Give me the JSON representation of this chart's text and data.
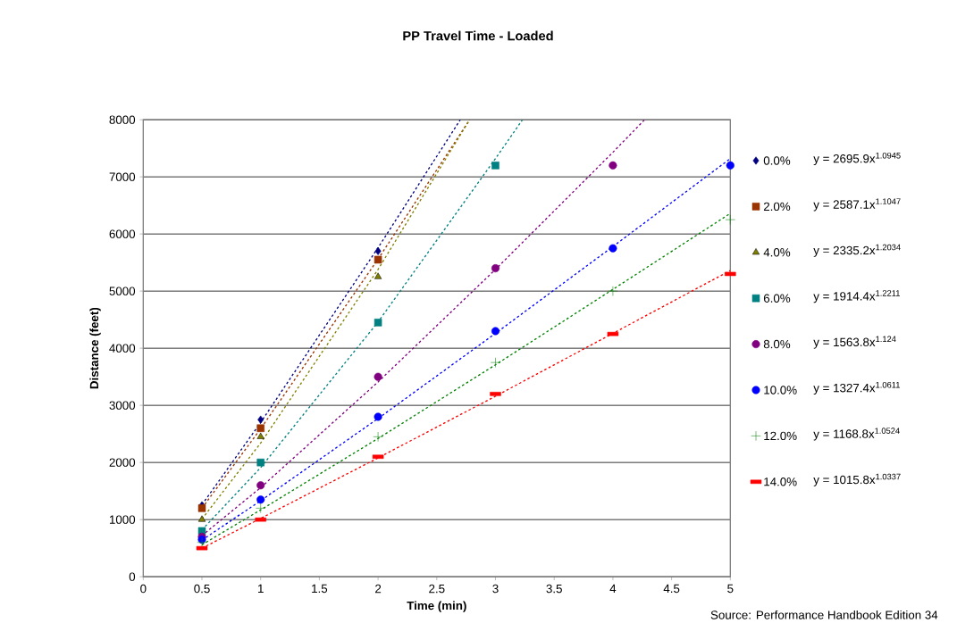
{
  "chart_data": {
    "type": "scatter",
    "title": "PP Travel Time - Loaded",
    "xlabel": "Time (min)",
    "ylabel": "Distance (feet)",
    "xlim": [
      0,
      5
    ],
    "xticks": [
      0,
      0.5,
      1,
      1.5,
      2,
      2.5,
      3,
      3.5,
      4,
      4.5,
      5
    ],
    "ylim": [
      0,
      8000
    ],
    "yticks": [
      0,
      1000,
      2000,
      3000,
      4000,
      5000,
      6000,
      7000,
      8000
    ],
    "grid": "y",
    "legend": "right",
    "series": [
      {
        "name": "0.0%",
        "color": "#000080",
        "marker": "diamond",
        "x": [
          0.5,
          1,
          2
        ],
        "values": [
          1250,
          2750,
          5700
        ]
      },
      {
        "name": "2.0%",
        "color": "#993300",
        "marker": "square",
        "x": [
          0.5,
          1,
          2
        ],
        "values": [
          1200,
          2600,
          5550
        ]
      },
      {
        "name": "4.0%",
        "color": "#808000",
        "marker": "triangle",
        "x": [
          0.5,
          1,
          2
        ],
        "values": [
          1000,
          2450,
          5250
        ]
      },
      {
        "name": "6.0%",
        "color": "#008080",
        "marker": "square",
        "x": [
          0.5,
          1,
          2,
          3
        ],
        "values": [
          800,
          2000,
          4450,
          7200
        ]
      },
      {
        "name": "8.0%",
        "color": "#800080",
        "marker": "circle",
        "x": [
          0.5,
          1,
          2,
          3,
          4
        ],
        "values": [
          700,
          1600,
          3500,
          5400,
          7200
        ]
      },
      {
        "name": "10.0%",
        "color": "#0000ff",
        "marker": "circle",
        "x": [
          0.5,
          1,
          2,
          3,
          4,
          5
        ],
        "values": [
          650,
          1350,
          2800,
          4300,
          5750,
          7200
        ]
      },
      {
        "name": "12.0%",
        "color": "#008000",
        "marker": "cross",
        "x": [
          0.5,
          1,
          2,
          3,
          4,
          5
        ],
        "values": [
          600,
          1200,
          2450,
          3750,
          5000,
          6250
        ]
      },
      {
        "name": "14.0%",
        "color": "#ff0000",
        "marker": "square",
        "x": [
          0.5,
          1,
          2,
          3,
          4,
          5
        ],
        "values": [
          500,
          1000,
          2100,
          3200,
          4250,
          5300
        ]
      },
      {
        "type": "line",
        "line_style": "dashed",
        "color": "#000080",
        "x": [
          0.5,
          1,
          2,
          2.7
        ],
        "values": [
          1260,
          2700,
          5760,
          8000
        ]
      },
      {
        "type": "line",
        "line_style": "dashed",
        "color": "#993300",
        "x": [
          0.5,
          1,
          2,
          2.78
        ],
        "values": [
          1200,
          2590,
          5560,
          8000
        ]
      },
      {
        "type": "line",
        "line_style": "dashed",
        "color": "#808000",
        "x": [
          0.5,
          1,
          2,
          2.78
        ],
        "values": [
          1010,
          2340,
          5380,
          8000
        ]
      },
      {
        "type": "line",
        "line_style": "dashed",
        "color": "#008080",
        "x": [
          0.5,
          1,
          2,
          3,
          3.23
        ],
        "values": [
          820,
          1910,
          4460,
          7320,
          8000
        ]
      },
      {
        "type": "line",
        "line_style": "dashed",
        "color": "#800080",
        "x": [
          0.5,
          1,
          2,
          3,
          4,
          4.27
        ],
        "values": [
          720,
          1560,
          3410,
          5380,
          7430,
          8000
        ]
      },
      {
        "type": "line",
        "line_style": "dashed",
        "color": "#0000ff",
        "x": [
          0.5,
          1,
          2,
          3,
          4,
          5
        ],
        "values": [
          640,
          1330,
          2770,
          4260,
          5780,
          7320
        ]
      },
      {
        "type": "line",
        "line_style": "dashed",
        "color": "#008000",
        "x": [
          0.5,
          1,
          2,
          3,
          4,
          5
        ],
        "values": [
          560,
          1170,
          2420,
          3710,
          5030,
          6360
        ]
      },
      {
        "type": "line",
        "line_style": "dashed",
        "color": "#ff0000",
        "x": [
          0.5,
          1,
          2,
          3,
          4,
          5
        ],
        "values": [
          500,
          1020,
          2080,
          3160,
          4260,
          5360
        ]
      }
    ],
    "annotations": [
      "y = 2695.9x$^{1.0945}$",
      "y = 2587.1x$^{1.1047}$",
      "y = 2335.2x$^{1.2034}$",
      "y = 1914.4x$^{1.2211}$",
      "y = 1563.8x$^{1.124}$",
      "y = 1327.4x$^{1.0611}$",
      "y = 1168.8x$^{1.0524}$",
      "y = 1015.8x$^{1.0337}$",
      "Source: Performance Handbook Edition 34"
    ]
  }
}
